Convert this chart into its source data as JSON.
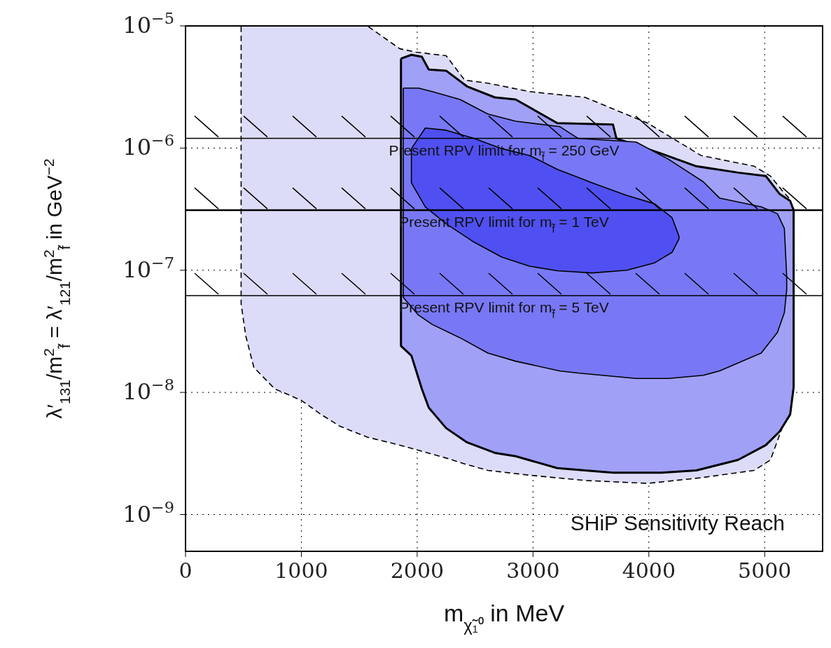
{
  "chart_data": {
    "type": "area",
    "xlabel": "m$_{χ̃₁⁰}$ in MeV",
    "ylabel": "λ′$_{131}$/m$^{2}$$_{f̃}$ = λ′$_{121}$/m$^{2}$$_{f̃}$ in GeV$^{−2}$",
    "log": "y",
    "grid": true,
    "xlim": [
      0,
      5500
    ],
    "xticks": [
      0,
      1000,
      2000,
      3000,
      4000,
      5000
    ],
    "ylim": [
      5e-10,
      1e-05
    ],
    "yticks": [
      {
        "value": 1e-05,
        "label": "10$^{−5}$"
      },
      {
        "value": 1e-06,
        "label": "10$^{−6}$"
      },
      {
        "value": 1e-07,
        "label": "10$^{−7}$"
      },
      {
        "value": 1e-08,
        "label": "10$^{−8}$"
      },
      {
        "value": 1e-09,
        "label": "10$^{−9}$"
      }
    ],
    "series": [
      {
        "color": "#dcdcf8",
        "line_style": "dashed",
        "x": [
          480,
          520,
          590,
          770,
          1000,
          1170,
          1330,
          1570,
          1850,
          1990,
          2250,
          2410,
          2610,
          2970,
          3450,
          3990,
          4450,
          4910,
          5050,
          5150,
          5210,
          5250,
          5250,
          5210,
          5150,
          5050,
          4910,
          4450,
          3990,
          3450,
          2970,
          2610,
          2410,
          2250,
          1990,
          1850,
          1570,
          1330,
          1170,
          1000,
          770,
          590,
          520,
          480,
          480
        ],
        "values": [
          1e-05,
          1e-05,
          1e-05,
          1e-05,
          1e-05,
          1e-05,
          1e-05,
          1e-05,
          6.5e-06,
          6.1e-06,
          5.7e-06,
          3.6e-06,
          3.4e-06,
          2.9e-06,
          2.6e-06,
          1.6e-06,
          8.7e-07,
          7.1e-07,
          5.9e-07,
          4.5e-07,
          3.9e-07,
          3.1e-07,
          1.1e-08,
          6.6e-09,
          5.1e-09,
          2.8e-09,
          2.3e-09,
          2e-09,
          1.8e-09,
          1.9e-09,
          2.1e-09,
          2.3e-09,
          2.6e-09,
          2.9e-09,
          3.4e-09,
          3.7e-09,
          4.3e-09,
          5.3e-09,
          6.6e-09,
          8.6e-09,
          1.07e-08,
          1.6e-08,
          2.9e-08,
          5.3e-08,
          1e-05
        ]
      },
      {
        "color": "#a0a0f6",
        "line_style": "solid",
        "x": [
          1860,
          1950,
          2040,
          2100,
          2250,
          2430,
          2670,
          2850,
          3210,
          3690,
          3720,
          4110,
          4410,
          4770,
          5010,
          5130,
          5220,
          5250,
          5250,
          5220,
          5130,
          5010,
          4770,
          4410,
          4110,
          3690,
          3210,
          2850,
          2670,
          2430,
          2250,
          2100,
          2040,
          1950,
          1860,
          1860
        ],
        "values": [
          5.4e-06,
          5.8e-06,
          5.6e-06,
          4.4e-06,
          4.3e-06,
          3.2e-06,
          2.6e-06,
          2.5e-06,
          1.6e-06,
          1.56e-06,
          1.2e-06,
          9e-07,
          7.1e-07,
          6.3e-07,
          5.9e-07,
          4.2e-07,
          3.7e-07,
          3.1e-07,
          1.1e-08,
          6.6e-09,
          4.8e-09,
          3.7e-09,
          2.8e-09,
          2.3e-09,
          2.2e-09,
          2.2e-09,
          2.4e-09,
          3e-09,
          3.2e-09,
          3.9e-09,
          5.1e-09,
          7.5e-09,
          1.07e-08,
          2e-08,
          2.4e-08,
          5.4e-06
        ]
      },
      {
        "color": "#7878f6",
        "line_style": "solid",
        "x": [
          1880,
          2010,
          2130,
          2370,
          2610,
          2850,
          3230,
          3390,
          3890,
          4170,
          4470,
          4610,
          4970,
          5110,
          5170,
          5190,
          5190,
          5170,
          5110,
          4970,
          4610,
          4470,
          4170,
          3890,
          3390,
          3230,
          2850,
          2610,
          2370,
          2130,
          2010,
          1880,
          1880
        ],
        "values": [
          3.1e-06,
          3.1e-06,
          2.9e-06,
          2.5e-06,
          1.9e-06,
          1.66e-06,
          1.5e-06,
          1.2e-06,
          1.12e-06,
          8.1e-07,
          5.3e-07,
          3.9e-07,
          3.3e-07,
          2.9e-07,
          2.2e-07,
          8.9e-08,
          6.9e-08,
          4.5e-08,
          3.1e-08,
          2.1e-08,
          1.5e-08,
          1.38e-08,
          1.3e-08,
          1.3e-08,
          1.44e-08,
          1.5e-08,
          1.8e-08,
          2.1e-08,
          2.8e-08,
          3.6e-08,
          4.3e-08,
          6e-08,
          3.1e-06
        ]
      },
      {
        "color": "#5050f2",
        "line_style": "solid",
        "x": [
          1950,
          2070,
          2250,
          2490,
          2730,
          2970,
          3210,
          3510,
          3810,
          4050,
          4200,
          4260,
          4260,
          4200,
          4050,
          3810,
          3510,
          3210,
          2970,
          2730,
          2490,
          2250,
          2070,
          1950,
          1950
        ],
        "values": [
          9.9e-07,
          1.46e-06,
          1.4e-06,
          1.2e-06,
          9.9e-07,
          8.7e-07,
          6.7e-07,
          5.2e-07,
          4.1e-07,
          3.5e-07,
          2.7e-07,
          1.9e-07,
          1.8e-07,
          1.4e-07,
          1.15e-07,
          1e-07,
          9.5e-08,
          9.9e-08,
          1.08e-07,
          1.28e-07,
          1.7e-07,
          2.4e-07,
          3.3e-07,
          5.2e-07,
          9.9e-07
        ]
      }
    ],
    "ref_lines": [
      {
        "axis": "y",
        "value": 1.2e-06
      },
      {
        "axis": "y",
        "value": 3.1e-07
      },
      {
        "axis": "y",
        "value": 6.2e-08
      }
    ],
    "annotations": [
      {
        "text": "Present RPV limit for m$_{f̃}$ = 250 GeV",
        "y": 1.2e-06
      },
      {
        "text": "Present RPV limit for m$_{f̃}$ = 1 TeV",
        "y": 3.1e-07
      },
      {
        "text": "Present RPV limit for m$_{f̃}$ = 5 TeV",
        "y": 6.2e-08
      },
      "SHiP Sensitivity Reach"
    ]
  }
}
